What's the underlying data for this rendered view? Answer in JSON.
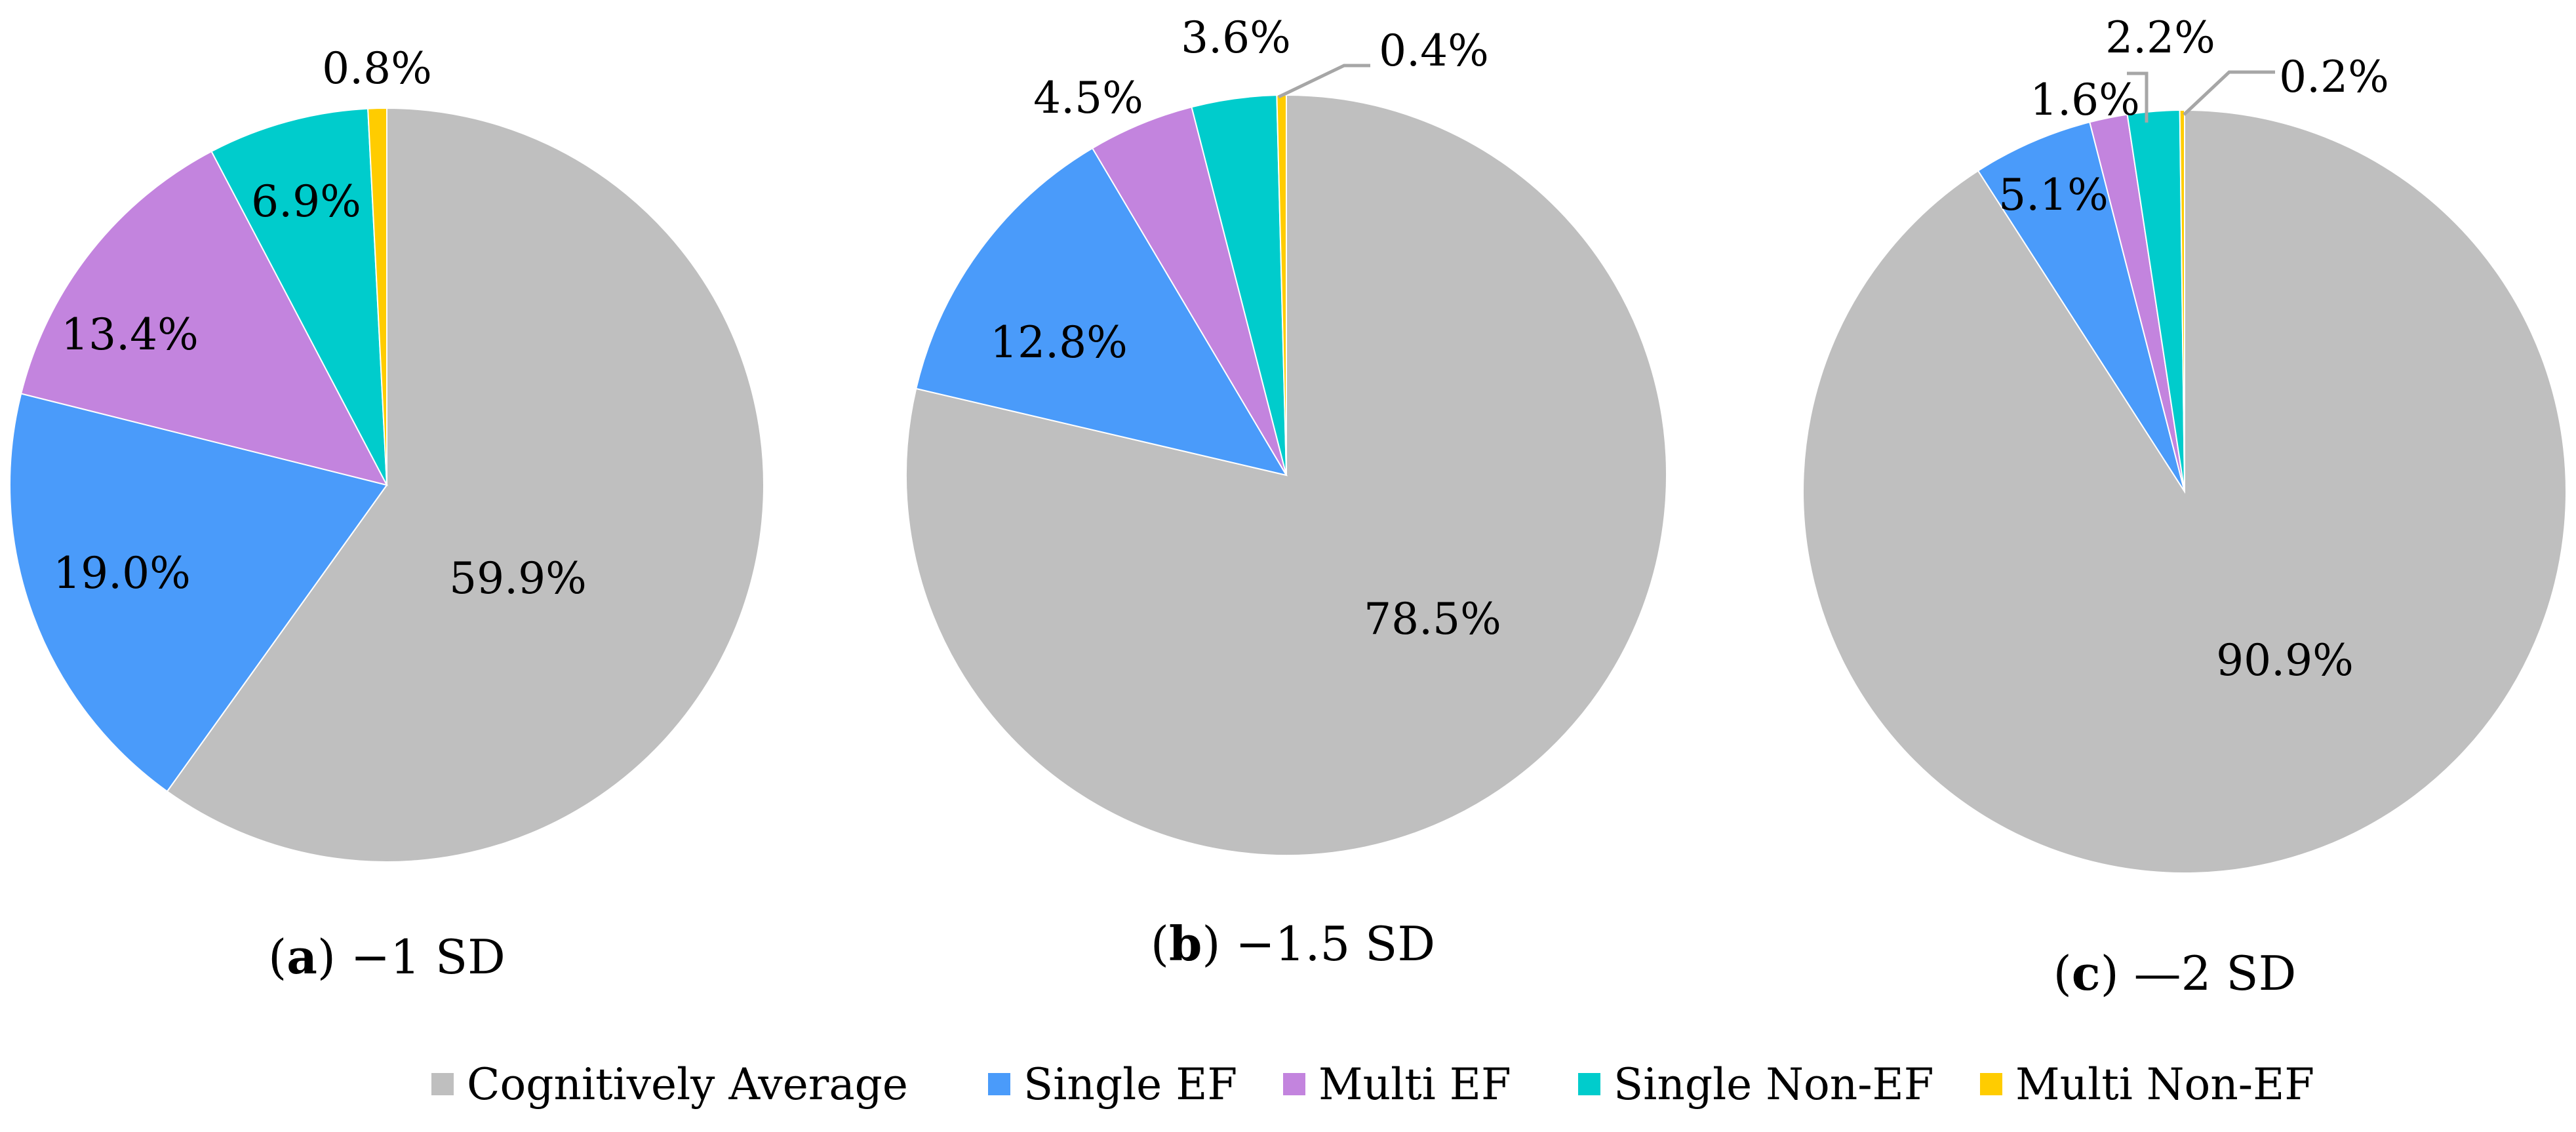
{
  "chart_data": [
    {
      "type": "pie",
      "caption_letter": "a",
      "caption_rest": " −1 SD",
      "categories": [
        "Cognitively Average",
        "Single EF",
        "Multi EF",
        "Single Non-EF",
        "Multi Non-EF"
      ],
      "values": [
        59.9,
        19.0,
        13.4,
        6.9,
        0.8
      ],
      "labels": [
        "59.9%",
        "19.0%",
        "13.4%",
        "6.9%",
        "0.8%"
      ]
    },
    {
      "type": "pie",
      "caption_letter": "b",
      "caption_rest": " −1.5 SD",
      "categories": [
        "Cognitively Average",
        "Single EF",
        "Multi EF",
        "Single Non-EF",
        "Multi Non-EF"
      ],
      "values": [
        78.5,
        12.8,
        4.5,
        3.6,
        0.4
      ],
      "labels": [
        "78.5%",
        "12.8%",
        "4.5%",
        "3.6%",
        "0.4%"
      ]
    },
    {
      "type": "pie",
      "caption_letter": "c",
      "caption_rest": " —2 SD",
      "categories": [
        "Cognitively Average",
        "Single EF",
        "Multi EF",
        "Single Non-EF",
        "Multi Non-EF"
      ],
      "values": [
        90.9,
        5.1,
        1.6,
        2.2,
        0.2
      ],
      "labels": [
        "90.9%",
        "5.1%",
        "1.6%",
        "2.2%",
        "0.2%"
      ]
    }
  ],
  "legend": [
    {
      "label": "Cognitively Average",
      "color": "#bfbfbf"
    },
    {
      "label": "Single EF",
      "color": "#4a9bfa"
    },
    {
      "label": "Multi EF",
      "color": "#c384de"
    },
    {
      "label": "Single Non-EF",
      "color": "#00cccc"
    },
    {
      "label": "Multi Non-EF",
      "color": "#ffcc00"
    }
  ],
  "colors": [
    "#bfbfbf",
    "#4a9bfa",
    "#c384de",
    "#00cccc",
    "#ffcc00"
  ]
}
